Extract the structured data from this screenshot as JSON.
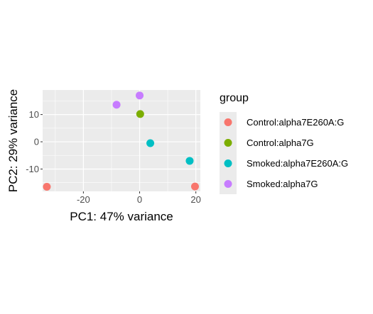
{
  "chart_data": {
    "type": "scatter",
    "xlabel": "PC1: 47% variance",
    "ylabel": "PC2: 29% variance",
    "xlim": [
      -34.5,
      21.6
    ],
    "ylim": [
      -18.2,
      19.0
    ],
    "x_ticks": [
      -20,
      0,
      20
    ],
    "y_ticks": [
      -10,
      0,
      10
    ],
    "x_tick_labels": [
      "-20",
      "0",
      "20"
    ],
    "y_tick_labels": [
      "-10",
      "0",
      "10"
    ],
    "grid": true,
    "panel_background": "#ebebeb",
    "legend": {
      "title": "group",
      "placement": "right"
    },
    "series": [
      {
        "name": "Control:alpha7E260A:G",
        "color": "#F8766D",
        "points": [
          {
            "x": -33.0,
            "y": -16.5
          },
          {
            "x": 19.7,
            "y": -16.4
          }
        ]
      },
      {
        "name": "Control:alpha7G",
        "color": "#7CAE00",
        "points": [
          {
            "x": 0.2,
            "y": 10.2
          }
        ]
      },
      {
        "name": "Smoked:alpha7E260A:G",
        "color": "#00BFC4",
        "points": [
          {
            "x": 3.8,
            "y": -0.5
          },
          {
            "x": 17.8,
            "y": -7.0
          }
        ]
      },
      {
        "name": "Smoked:alpha7G",
        "color": "#C77CFF",
        "points": [
          {
            "x": -8.2,
            "y": 13.6
          },
          {
            "x": 0.0,
            "y": 17.0
          }
        ]
      }
    ]
  }
}
